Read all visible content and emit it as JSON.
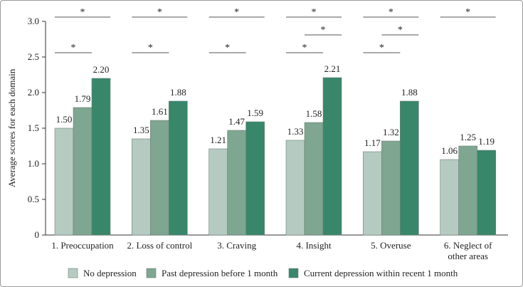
{
  "chart_data": {
    "type": "bar",
    "ylabel": "Average scores for each domain",
    "xlabel": "",
    "ylim": [
      0,
      3.0
    ],
    "yticks": [
      "0",
      "0.5",
      "1.0",
      "1.5",
      "2.0",
      "2.5",
      "3.0"
    ],
    "categories": [
      [
        "1. Preoccupation"
      ],
      [
        "2. Loss of control"
      ],
      [
        "3. Craving"
      ],
      [
        "4. Insight"
      ],
      [
        "5. Overuse"
      ],
      [
        "6. Neglect of",
        "other areas"
      ]
    ],
    "series": [
      {
        "name": "No depression",
        "color": "#b5cbc2",
        "values": [
          1.5,
          1.35,
          1.21,
          1.33,
          1.17,
          1.06
        ],
        "labels": [
          "1.50",
          "1.35",
          "1.21",
          "1.33",
          "1.17",
          "1.06"
        ]
      },
      {
        "name": "Past depression before 1 month",
        "color": "#7ea690",
        "values": [
          1.79,
          1.61,
          1.47,
          1.58,
          1.32,
          1.25
        ],
        "labels": [
          "1.79",
          "1.61",
          "1.47",
          "1.58",
          "1.32",
          "1.25"
        ]
      },
      {
        "name": "Current depression within recent 1 month",
        "color": "#38876a",
        "values": [
          2.2,
          1.88,
          1.59,
          2.21,
          1.88,
          1.19
        ],
        "labels": [
          "2.20",
          "1.88",
          "1.59",
          "2.21",
          "1.88",
          "1.19"
        ]
      }
    ],
    "significance": [
      {
        "category": 0,
        "from": 0,
        "to": 2,
        "label": "*"
      },
      {
        "category": 0,
        "from": 0,
        "to": 1,
        "label": "*"
      },
      {
        "category": 1,
        "from": 0,
        "to": 2,
        "label": "*"
      },
      {
        "category": 1,
        "from": 0,
        "to": 1,
        "label": "*"
      },
      {
        "category": 2,
        "from": 0,
        "to": 2,
        "label": "*"
      },
      {
        "category": 2,
        "from": 0,
        "to": 1,
        "label": "*"
      },
      {
        "category": 3,
        "from": 0,
        "to": 2,
        "label": "*"
      },
      {
        "category": 3,
        "from": 1,
        "to": 2,
        "label": "*"
      },
      {
        "category": 3,
        "from": 0,
        "to": 1,
        "label": "*"
      },
      {
        "category": 4,
        "from": 0,
        "to": 2,
        "label": "*"
      },
      {
        "category": 4,
        "from": 1,
        "to": 2,
        "label": "*"
      },
      {
        "category": 4,
        "from": 0,
        "to": 1,
        "label": "*"
      },
      {
        "category": 5,
        "from": 0,
        "to": 2,
        "label": "*"
      }
    ],
    "grid": false,
    "legend": "bottom"
  }
}
